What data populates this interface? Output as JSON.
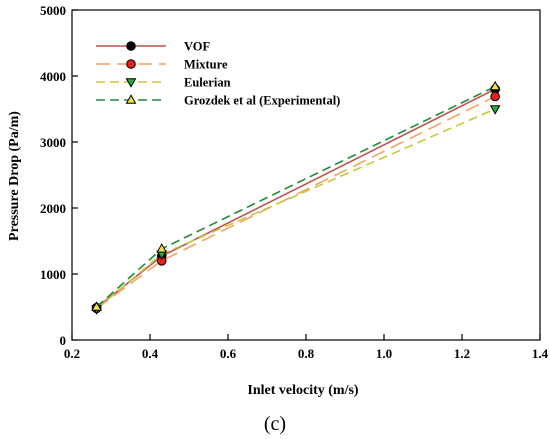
{
  "chart_data": {
    "type": "line",
    "title": "",
    "xlabel": "Inlet velocity (m/s)",
    "ylabel": "Pressure Drop (Pa/m)",
    "xlim": [
      0.2,
      1.4
    ],
    "ylim": [
      0,
      5000
    ],
    "xticks": [
      "0.2",
      "0.4",
      "0.6",
      "0.8",
      "1.0",
      "1.2",
      "1.4"
    ],
    "yticks": [
      "0",
      "1000",
      "2000",
      "3000",
      "4000",
      "5000"
    ],
    "grid": false,
    "legend_position": "top-left",
    "panel_label": "(c)",
    "series": [
      {
        "name": "VOF",
        "color": "#c0504d",
        "dash": "solid",
        "marker": "circle",
        "marker_fill": "#000000",
        "x": [
          0.263,
          0.43,
          1.285
        ],
        "y": [
          490,
          1270,
          3800
        ]
      },
      {
        "name": "Mixture",
        "color": "#f4a460",
        "dash": "long-dash",
        "marker": "circle",
        "marker_fill": "#e8201a",
        "x": [
          0.263,
          0.43,
          1.285
        ],
        "y": [
          480,
          1200,
          3690
        ]
      },
      {
        "name": "Eulerian",
        "color": "#c8c83c",
        "dash": "dash",
        "marker": "triangle-down",
        "marker_fill": "#22b03a",
        "x": [
          0.263,
          0.43,
          1.285
        ],
        "y": [
          470,
          1300,
          3500
        ]
      },
      {
        "name": "Grozdek et al (Experimental)",
        "color": "#1e8c3a",
        "dash": "dash",
        "marker": "triangle-up",
        "marker_fill": "#f0e040",
        "x": [
          0.263,
          0.43,
          1.285
        ],
        "y": [
          500,
          1380,
          3840
        ]
      }
    ]
  }
}
